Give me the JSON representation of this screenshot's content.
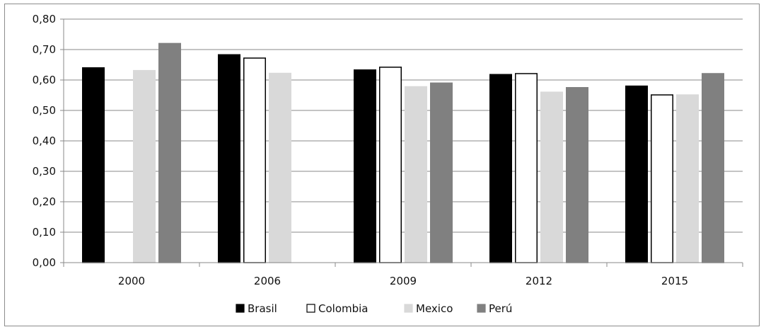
{
  "chart_data": {
    "type": "bar",
    "categories": [
      "2000",
      "2006",
      "2009",
      "2012",
      "2015"
    ],
    "series": [
      {
        "name": "Brasil",
        "color": "#000000",
        "stroke": "#000000",
        "values": [
          0.64,
          0.683,
          0.633,
          0.618,
          0.58
        ]
      },
      {
        "name": "Colombia",
        "color": "#ffffff",
        "stroke": "#000000",
        "values": [
          null,
          0.672,
          0.642,
          0.621,
          0.551
        ]
      },
      {
        "name": "Mexico",
        "color": "#d9d9d9",
        "stroke": "#d9d9d9",
        "values": [
          0.631,
          0.622,
          0.578,
          0.56,
          0.551
        ]
      },
      {
        "name": "Perú",
        "color": "#808080",
        "stroke": "#808080",
        "values": [
          0.72,
          null,
          0.59,
          0.575,
          0.621
        ]
      }
    ],
    "y_ticks": [
      "0,00",
      "0,10",
      "0,20",
      "0,30",
      "0,40",
      "0,50",
      "0,60",
      "0,70",
      "0,80"
    ],
    "ylim": [
      0,
      0.8
    ],
    "grid": true,
    "legend_position": "bottom",
    "title": "",
    "xlabel": "",
    "ylabel": ""
  }
}
